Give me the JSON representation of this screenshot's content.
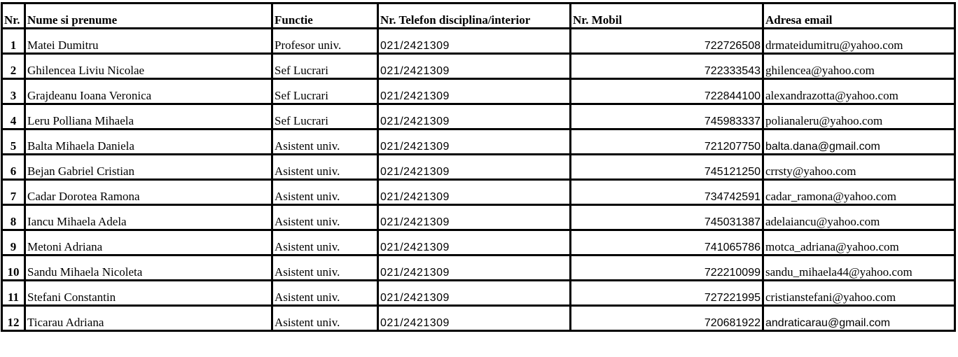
{
  "headers": [
    "Nr.",
    "Nume si prenume",
    "Functie",
    "Nr. Telefon disciplina/interior",
    "Nr. Mobil",
    "Adresa email"
  ],
  "rows": [
    {
      "nr": "1",
      "name": "Matei Dumitru",
      "role": "Profesor univ.",
      "phone": "021/2421309",
      "mobile": "722726508",
      "email": "drmateidumitru@yahoo.com"
    },
    {
      "nr": "2",
      "name": "Ghilencea Liviu Nicolae",
      "role": "Sef Lucrari",
      "phone": "021/2421309",
      "mobile": "722333543",
      "email": "ghilencea@yahoo.com"
    },
    {
      "nr": "3",
      "name": "Grajdeanu Ioana Veronica",
      "role": "Sef Lucrari",
      "phone": "021/2421309",
      "mobile": "722844100",
      "email": "alexandrazotta@yahoo.com"
    },
    {
      "nr": "4",
      "name": "Leru Polliana    Mihaela",
      "role": "Sef Lucrari",
      "phone": "021/2421309",
      "mobile": "745983337",
      "email": "polianaleru@yahoo.com"
    },
    {
      "nr": "5",
      "name": "Balta Mihaela Daniela",
      "role": "Asistent univ.",
      "phone": "021/2421309",
      "mobile": "721207750",
      "email": "balta.dana@gmail.com"
    },
    {
      "nr": "6",
      "name": "Bejan Gabriel    Cristian",
      "role": "Asistent univ.",
      "phone": "021/2421309",
      "mobile": "745121250",
      "email": "crrsty@yahoo.com"
    },
    {
      "nr": "7",
      "name": "Cadar Dorotea Ramona",
      "role": "Asistent univ.",
      "phone": "021/2421309",
      "mobile": "734742591",
      "email": "cadar_ramona@yahoo.com"
    },
    {
      "nr": "8",
      "name": "Iancu Mihaela Adela",
      "role": "Asistent univ.",
      "phone": "021/2421309",
      "mobile": "745031387",
      "email": "adelaiancu@yahoo.com"
    },
    {
      "nr": "9",
      "name": "Metoni Adriana",
      "role": "Asistent univ.",
      "phone": "021/2421309",
      "mobile": "741065786",
      "email": "motca_adriana@yahoo.com"
    },
    {
      "nr": "10",
      "name": "Sandu Mihaela Nicoleta",
      "role": "Asistent univ.",
      "phone": "021/2421309",
      "mobile": "722210099",
      "email": "sandu_mihaela44@yahoo.com"
    },
    {
      "nr": "11",
      "name": "Stefani Constantin",
      "role": "Asistent univ.",
      "phone": "021/2421309",
      "mobile": "727221995",
      "email": "cristianstefani@yahoo.com"
    },
    {
      "nr": "12",
      "name": "Ticarau Adriana",
      "role": "Asistent univ.",
      "phone": "021/2421309",
      "mobile": "720681922",
      "email": "andraticarau@gmail.com"
    }
  ]
}
